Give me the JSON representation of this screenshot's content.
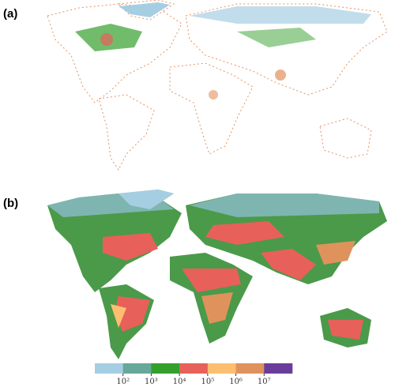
{
  "panels": [
    {
      "label": "(a)"
    },
    {
      "label": "(b)"
    }
  ],
  "colorbar": {
    "scale": "log",
    "lim": [
      10,
      100000000
    ],
    "colors": [
      "#a6cee3",
      "#66a89a",
      "#33a02c",
      "#e8605a",
      "#fdbf6f",
      "#e0925c",
      "#6a3d9a"
    ],
    "ticks": [
      {
        "value": 100,
        "label": "10²"
      },
      {
        "value": 1000,
        "label": "10³"
      },
      {
        "value": 10000,
        "label": "10⁴"
      },
      {
        "value": 100000,
        "label": "10⁵"
      },
      {
        "value": 1000000,
        "label": "10⁶"
      },
      {
        "value": 10000000,
        "label": "10⁷"
      }
    ]
  }
}
